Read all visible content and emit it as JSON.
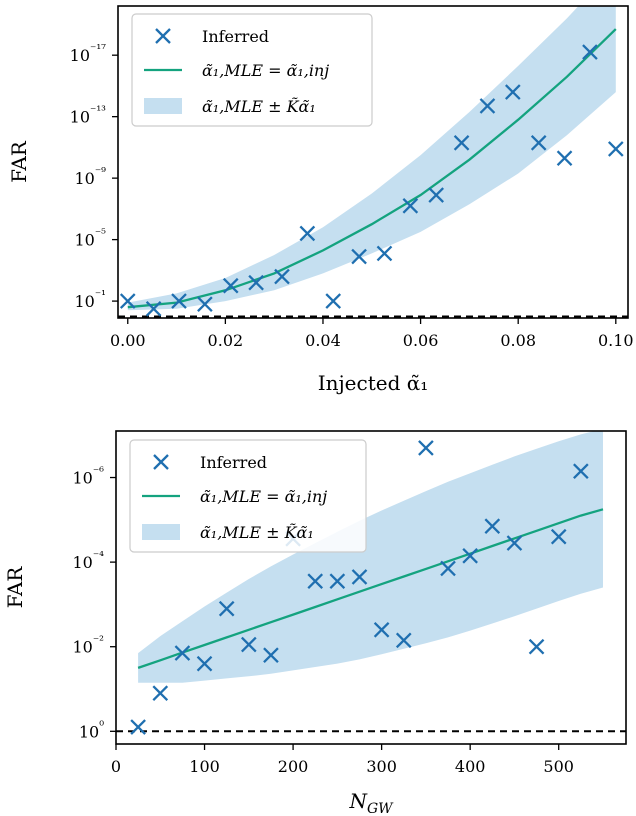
{
  "colors": {
    "marker": "#1f6fb0",
    "line": "#14a37f",
    "band": "#c5dff0",
    "threshold": "#000000"
  },
  "chart_data": [
    {
      "type": "scatter",
      "xlabel": "Injected α̃₁",
      "ylabel": "FAR",
      "x_ticks": [
        "0.00",
        "0.02",
        "0.04",
        "0.06",
        "0.08",
        "0.10"
      ],
      "y_ticks": [
        "10⁻¹⁷",
        "10⁻¹³",
        "10⁻⁹",
        "10⁻⁵",
        "10⁻¹"
      ],
      "log_y": true,
      "y_inverted": true,
      "xlim": [
        -0.002,
        0.1025
      ],
      "ylim_log10": [
        0.1,
        -20.2
      ],
      "legend_position": "top-left",
      "legend": [
        "Inferred",
        "α̃₁,MLE = α̃₁,inj",
        "α̃₁,MLE ± K̃α̃₁"
      ],
      "threshold_log10": 0,
      "series": [
        {
          "name": "Inferred",
          "x": [
            0.0,
            0.0053,
            0.0105,
            0.0158,
            0.0211,
            0.0263,
            0.0316,
            0.0368,
            0.0421,
            0.0474,
            0.0526,
            0.0579,
            0.0632,
            0.0684,
            0.0737,
            0.0789,
            0.0842,
            0.0895,
            0.0947,
            0.1
          ],
          "log10_far": [
            -1.0,
            -0.5,
            -1.0,
            -0.8,
            -2.0,
            -2.2,
            -2.6,
            -5.4,
            -1.0,
            -3.9,
            -4.1,
            -7.2,
            -7.9,
            -11.3,
            -13.7,
            -14.6,
            -11.3,
            -10.3,
            -17.2,
            -10.9
          ]
        },
        {
          "name": "α̃₁,MLE = α̃₁,inj",
          "x": [
            0.0,
            0.01,
            0.02,
            0.03,
            0.04,
            0.05,
            0.06,
            0.07,
            0.08,
            0.09,
            0.1
          ],
          "log10_far": [
            -0.6,
            -0.9,
            -1.7,
            -2.8,
            -4.3,
            -6.0,
            -7.9,
            -10.2,
            -12.8,
            -15.6,
            -18.7
          ]
        },
        {
          "name": "α̃₁,MLE ± K̃α̃₁",
          "x": [
            0.0,
            0.01,
            0.02,
            0.03,
            0.04,
            0.05,
            0.06,
            0.07,
            0.08,
            0.09,
            0.1
          ],
          "upper_log10": [
            -0.9,
            -1.5,
            -2.5,
            -4.0,
            -5.8,
            -8.0,
            -10.5,
            -13.3,
            -16.3,
            -19.4,
            -22.8
          ],
          "lower_log10": [
            -0.4,
            -0.5,
            -1.0,
            -1.7,
            -2.8,
            -4.1,
            -5.5,
            -7.3,
            -9.3,
            -11.8,
            -14.6
          ]
        }
      ]
    },
    {
      "type": "scatter",
      "xlabel": "N_GW",
      "ylabel": "FAR",
      "x_ticks": [
        "0",
        "100",
        "200",
        "300",
        "400",
        "500"
      ],
      "y_ticks": [
        "10⁰",
        "10⁻²",
        "10⁻⁴",
        "10⁻⁶"
      ],
      "log_y": true,
      "y_inverted": true,
      "xlim": [
        0,
        576
      ],
      "ylim_log10": [
        0.3,
        -7.1
      ],
      "legend_position": "top-left",
      "legend": [
        "Inferred",
        "α̃₁,MLE = α̃₁,inj",
        "α̃₁,MLE ± K̃α̃₁"
      ],
      "threshold_log10": 0,
      "series": [
        {
          "name": "Inferred",
          "x": [
            25,
            50,
            75,
            100,
            125,
            150,
            175,
            200,
            225,
            250,
            275,
            300,
            325,
            350,
            375,
            400,
            425,
            450,
            475,
            500,
            525
          ],
          "log10_far": [
            -0.1,
            -0.9,
            -1.85,
            -1.6,
            -2.9,
            -2.05,
            -1.8,
            -4.55,
            -3.55,
            -3.55,
            -3.65,
            -2.4,
            -2.15,
            -6.7,
            -3.85,
            -4.15,
            -4.85,
            -4.45,
            -2.0,
            -4.6,
            -6.15
          ]
        },
        {
          "name": "α̃₁,MLE = α̃₁,inj",
          "x": [
            25,
            50,
            75,
            100,
            125,
            150,
            175,
            200,
            225,
            250,
            275,
            300,
            325,
            350,
            375,
            400,
            425,
            450,
            475,
            500,
            525,
            550
          ],
          "log10_far": [
            -1.5,
            -1.68,
            -1.86,
            -2.04,
            -2.22,
            -2.4,
            -2.58,
            -2.76,
            -2.94,
            -3.12,
            -3.3,
            -3.48,
            -3.66,
            -3.84,
            -4.02,
            -4.2,
            -4.38,
            -4.56,
            -4.74,
            -4.92,
            -5.1,
            -5.25
          ]
        },
        {
          "name": "α̃₁,MLE ± K̃α̃₁",
          "x": [
            25,
            50,
            75,
            100,
            125,
            150,
            175,
            200,
            225,
            250,
            275,
            300,
            325,
            350,
            375,
            400,
            425,
            450,
            475,
            500,
            525,
            550
          ],
          "upper_log10": [
            -1.85,
            -2.25,
            -2.6,
            -2.95,
            -3.28,
            -3.6,
            -3.9,
            -4.18,
            -4.45,
            -4.72,
            -4.98,
            -5.22,
            -5.45,
            -5.68,
            -5.9,
            -6.1,
            -6.3,
            -6.5,
            -6.68,
            -6.86,
            -7.02,
            -7.15
          ],
          "lower_log10": [
            -1.15,
            -1.15,
            -1.15,
            -1.2,
            -1.25,
            -1.3,
            -1.36,
            -1.44,
            -1.52,
            -1.6,
            -1.7,
            -1.82,
            -1.95,
            -2.08,
            -2.22,
            -2.38,
            -2.55,
            -2.72,
            -2.9,
            -3.08,
            -3.25,
            -3.4
          ]
        }
      ]
    }
  ]
}
